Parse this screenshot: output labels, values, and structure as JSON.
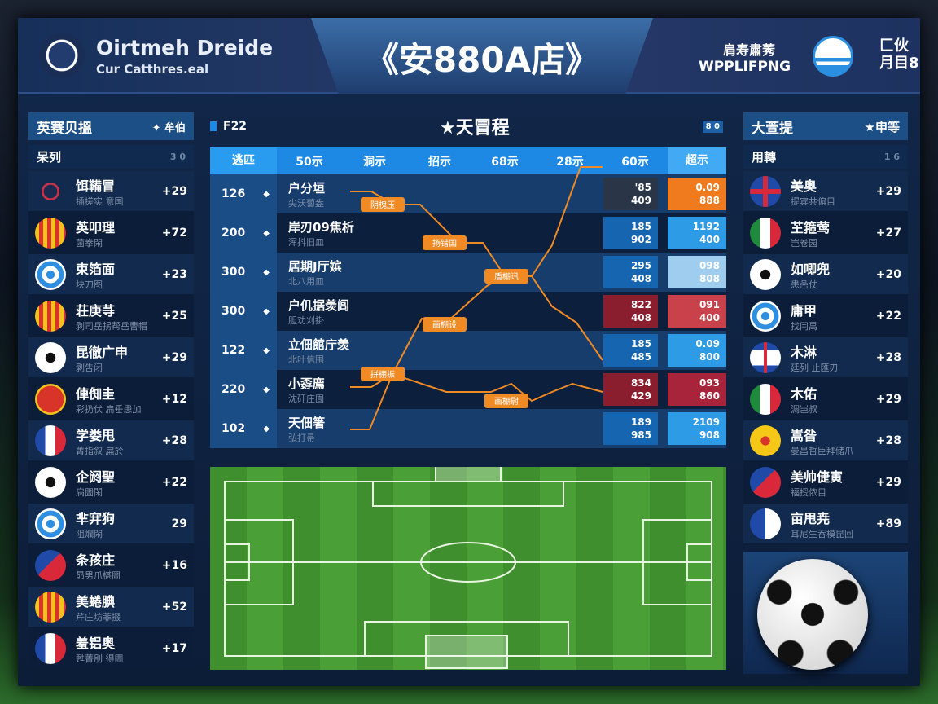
{
  "header": {
    "brand_title": "Oirtmeh Dreide",
    "brand_sub": "Cur Catthres.eal",
    "title": "《安880A店》",
    "right_line1": "肩寿肅莠",
    "right_line2": "WPPLIFPNG",
    "right_badge_top": "匚伙",
    "right_badge_bottom": "月目8"
  },
  "left": {
    "title": "英赛贝搵",
    "action": "✦ 牟伯",
    "sub_label": "呆列",
    "sub_count": "3 0",
    "items": [
      {
        "name": "饵鞴冒",
        "sub": "插搓实 意国",
        "score": "+29",
        "badge": "crest-red"
      },
      {
        "name": "英叩理",
        "sub": "菌拳閑",
        "score": "+72",
        "badge": "shield-stripes"
      },
      {
        "name": "束箔面",
        "sub": "块刀图",
        "score": "+23",
        "badge": "target"
      },
      {
        "name": "荘庚䒭",
        "sub": "剥司岳拐帮岳曹帽",
        "score": "+25",
        "badge": "shield-stripes"
      },
      {
        "name": "昆徹广申",
        "sub": "剥吿闭",
        "score": "+29",
        "badge": "ball"
      },
      {
        "name": "俥倁圭",
        "sub": "彩扔伏 扁垂患加",
        "score": "+12",
        "badge": "shield-red"
      },
      {
        "name": "学娄甩",
        "sub": "菁指叙 扁於",
        "score": "+28",
        "badge": "flag-fr"
      },
      {
        "name": "企阏聖",
        "sub": "扃圕閑",
        "score": "+22",
        "badge": "ball"
      },
      {
        "name": "芈宑狗",
        "sub": "阻爛閑",
        "score": "29",
        "badge": "target"
      },
      {
        "name": "条孩庄",
        "sub": "昴男爪椹圕",
        "score": "+16",
        "badge": "mixed"
      },
      {
        "name": "美蜷腆",
        "sub": "芹庄坊菲掇",
        "score": "+52",
        "badge": "shield-stripes"
      },
      {
        "name": "羞铝奥",
        "sub": "甦菁刖 得圕",
        "score": "+17",
        "badge": "flag-fr"
      }
    ]
  },
  "center": {
    "tag": "F22",
    "title": "★天冒程",
    "count": "8 0",
    "columns": [
      "逃匹",
      "50示",
      "洞示",
      "招示",
      "68示",
      "28示",
      "60示",
      "超示"
    ],
    "rows": [
      {
        "num": "126",
        "name": "户分垣",
        "sub": "尖沃蔔盎",
        "o1": [
          "'85",
          "409"
        ],
        "o2": [
          "0.09",
          "888"
        ],
        "c1": "#2a3548",
        "c2": "#f07a1e"
      },
      {
        "num": "200",
        "name": "岸刃09焦析",
        "sub": "浑抖旧皿",
        "o1": [
          "185",
          "902"
        ],
        "o2": [
          "1192",
          "400"
        ],
        "c1": "#1565b0",
        "c2": "#2e9be6"
      },
      {
        "num": "300",
        "name": "居期J厅嫔",
        "sub": "北八用皿",
        "o1": [
          "295",
          "408"
        ],
        "o2": [
          "098",
          "808"
        ],
        "c1": "#1565b0",
        "c2": "#9fcdf0"
      },
      {
        "num": "300",
        "name": "户仉据羡闾",
        "sub": "胆劝刈掛",
        "o1": [
          "822",
          "408"
        ],
        "o2": [
          "091",
          "400"
        ],
        "c1": "#8b1e2e",
        "c2": "#c9414a"
      },
      {
        "num": "122",
        "name": "立佃館庁羡",
        "sub": "北叶信围",
        "o1": [
          "185",
          "485"
        ],
        "o2": [
          "0.09",
          "800"
        ],
        "c1": "#1565b0",
        "c2": "#2e9be6"
      },
      {
        "num": "220",
        "name": "小孬廌",
        "sub": "沈矸庄圁",
        "o1": [
          "834",
          "429"
        ],
        "o2": [
          "093",
          "860"
        ],
        "c1": "#8b1e2e",
        "c2": "#a8243a"
      },
      {
        "num": "102",
        "name": "天佃箸",
        "sub": "弘打帚",
        "o1": [
          "189",
          "985"
        ],
        "o2": [
          "2109",
          "908"
        ],
        "c1": "#1565b0",
        "c2": "#2e9be6"
      }
    ],
    "bracket_labels": [
      "阴槐压",
      "扬错国",
      "盾棚讯",
      "画棚设",
      "拼棚振",
      "画棚尉"
    ]
  },
  "right": {
    "title": "大萱提",
    "action": "★申等",
    "sub_label": "用轉",
    "sub_count": "1 6",
    "items": [
      {
        "name": "美奥",
        "sub": "提宾共偏目",
        "score": "+29",
        "badge": "cross-red"
      },
      {
        "name": "芏箍莺",
        "sub": "岂卷园",
        "score": "+27",
        "badge": "flag-it"
      },
      {
        "name": "如唧兜",
        "sub": "患嵒仗",
        "score": "+20",
        "badge": "ball"
      },
      {
        "name": "庸甲",
        "sub": "找冃禹",
        "score": "+22",
        "badge": "target"
      },
      {
        "name": "木淋",
        "sub": "廷列 止匯刃",
        "score": "+28",
        "badge": "cross-white"
      },
      {
        "name": "木佑",
        "sub": "淍岂叔",
        "score": "+29",
        "badge": "flag-it"
      },
      {
        "name": "嵩昝",
        "sub": "曼昌哲臣拜储爪",
        "score": "+28",
        "badge": "yellow"
      },
      {
        "name": "美帅倢寅",
        "sub": "福授侬目",
        "score": "+29",
        "badge": "mixed"
      },
      {
        "name": "亩甩尭",
        "sub": "耳尼生吞模昆回",
        "score": "+89",
        "badge": "blue-white"
      }
    ]
  },
  "colors": {
    "accent": "#1e88e5",
    "bracket": "#f08a24",
    "panel": "#12284a"
  }
}
